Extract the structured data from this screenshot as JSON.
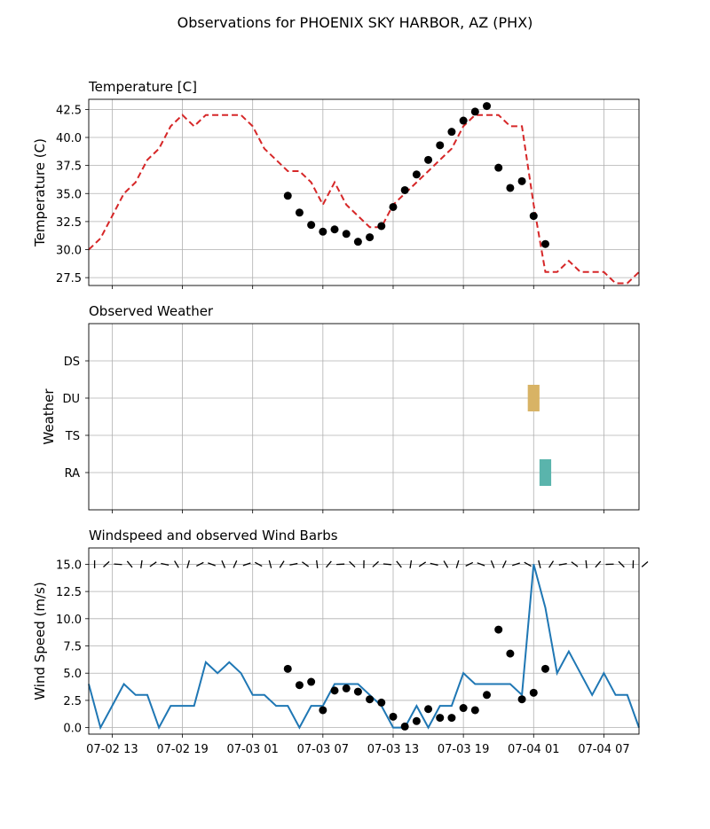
{
  "title": "Observations for PHOENIX SKY HARBOR, AZ (PHX)",
  "x_ticks": [
    "07-02 13",
    "07-02 19",
    "07-03 01",
    "07-03 07",
    "07-03 13",
    "07-03 19",
    "07-04 01",
    "07-04 07"
  ],
  "chart_data": [
    {
      "type": "line",
      "title": "Temperature [C]",
      "ylabel": "Temperature (C)",
      "xlim": [
        0,
        47
      ],
      "ylim": [
        26.8,
        43.4
      ],
      "yticks": [
        "27.5",
        "30.0",
        "32.5",
        "35.0",
        "37.5",
        "40.0",
        "42.5"
      ],
      "ytick_values": [
        27.5,
        30.0,
        32.5,
        35.0,
        37.5,
        40.0,
        42.5
      ],
      "grid": true,
      "line_color": "#d62728",
      "line_style": "dashed",
      "line_x": [
        0,
        1,
        2,
        3,
        4,
        5,
        6,
        7,
        8,
        9,
        10,
        11,
        12,
        13,
        14,
        15,
        16,
        17,
        18,
        19,
        20,
        21,
        22,
        23,
        24,
        25,
        26,
        27,
        28,
        29,
        30,
        31,
        32,
        33,
        34,
        35,
        36,
        37,
        38,
        39,
        40,
        41,
        42,
        43,
        44,
        45,
        46,
        47
      ],
      "line_y": [
        30,
        31,
        33,
        35,
        36,
        38,
        39,
        41,
        42,
        41,
        42,
        42,
        42,
        42,
        41,
        39,
        38,
        37,
        37,
        36,
        34,
        36,
        34,
        33,
        32,
        32,
        34,
        35,
        36,
        37,
        38,
        39,
        41,
        42,
        42,
        42,
        41,
        41,
        34,
        28,
        28,
        29,
        28,
        28,
        28,
        27,
        27,
        28
      ],
      "point_color": "#000000",
      "points_x": [
        17,
        18,
        19,
        20,
        21,
        22,
        23,
        24,
        25,
        26,
        27,
        28,
        29,
        30,
        31,
        32,
        33,
        34,
        35,
        36,
        37,
        38,
        39,
        40
      ],
      "points_y": [
        34.8,
        33.3,
        32.2,
        31.6,
        31.8,
        31.4,
        30.7,
        31.1,
        32.1,
        33.8,
        35.3,
        36.7,
        38.0,
        39.3,
        40.5,
        41.5,
        42.3,
        42.8,
        37.3,
        35.5,
        36.1,
        33.0,
        30.5,
        null
      ]
    },
    {
      "type": "heatmap",
      "title": "Observed Weather",
      "ylabel": "Weather",
      "xlim": [
        0,
        47
      ],
      "categories": [
        "RA",
        "TS",
        "DU",
        "DS"
      ],
      "grid": true,
      "blocks": [
        {
          "category": "DU",
          "x_start": 37.5,
          "x_end": 38.5,
          "color": "#d8b365"
        },
        {
          "category": "RA",
          "x_start": 38.5,
          "x_end": 39.5,
          "color": "#5ab4ac"
        }
      ]
    },
    {
      "type": "line",
      "title": "Windspeed and observed Wind Barbs",
      "ylabel": "Wind Speed (m/s)",
      "xlim": [
        0,
        47
      ],
      "ylim": [
        -0.6,
        16.5
      ],
      "yticks": [
        "0.0",
        "2.5",
        "5.0",
        "7.5",
        "10.0",
        "12.5",
        "15.0"
      ],
      "ytick_values": [
        0,
        2.5,
        5,
        7.5,
        10,
        12.5,
        15
      ],
      "grid": true,
      "line_color": "#1f77b4",
      "line_x": [
        0,
        1,
        2,
        3,
        4,
        5,
        6,
        7,
        8,
        9,
        10,
        11,
        12,
        13,
        14,
        15,
        16,
        17,
        18,
        19,
        20,
        21,
        22,
        23,
        24,
        25,
        26,
        27,
        28,
        29,
        30,
        31,
        32,
        33,
        34,
        35,
        36,
        37,
        38,
        39,
        40,
        41,
        42,
        43,
        44,
        45,
        46,
        47
      ],
      "line_y": [
        4,
        0,
        2,
        4,
        3,
        3,
        0,
        2,
        2,
        2,
        6,
        5,
        6,
        5,
        3,
        3,
        2,
        2,
        0,
        2,
        2,
        4,
        4,
        4,
        3,
        2,
        0,
        0,
        2,
        0,
        2,
        2,
        5,
        4,
        4,
        4,
        4,
        3,
        15,
        11,
        5,
        7,
        5,
        3,
        5,
        3,
        3,
        0
      ],
      "point_color": "#000000",
      "points_x": [
        17,
        18,
        19,
        20,
        21,
        22,
        23,
        24,
        25,
        26,
        27,
        28,
        29,
        30,
        31,
        32,
        33,
        34,
        35,
        36,
        37,
        38,
        39,
        40
      ],
      "points_y": [
        5.4,
        3.9,
        4.2,
        1.6,
        3.4,
        3.6,
        3.3,
        2.6,
        2.3,
        1.0,
        0.1,
        0.6,
        1.7,
        0.9,
        0.9,
        1.8,
        1.6,
        3.0,
        9.0,
        6.8,
        2.6,
        3.2,
        5.4,
        null
      ],
      "barb_level": 15
    }
  ]
}
